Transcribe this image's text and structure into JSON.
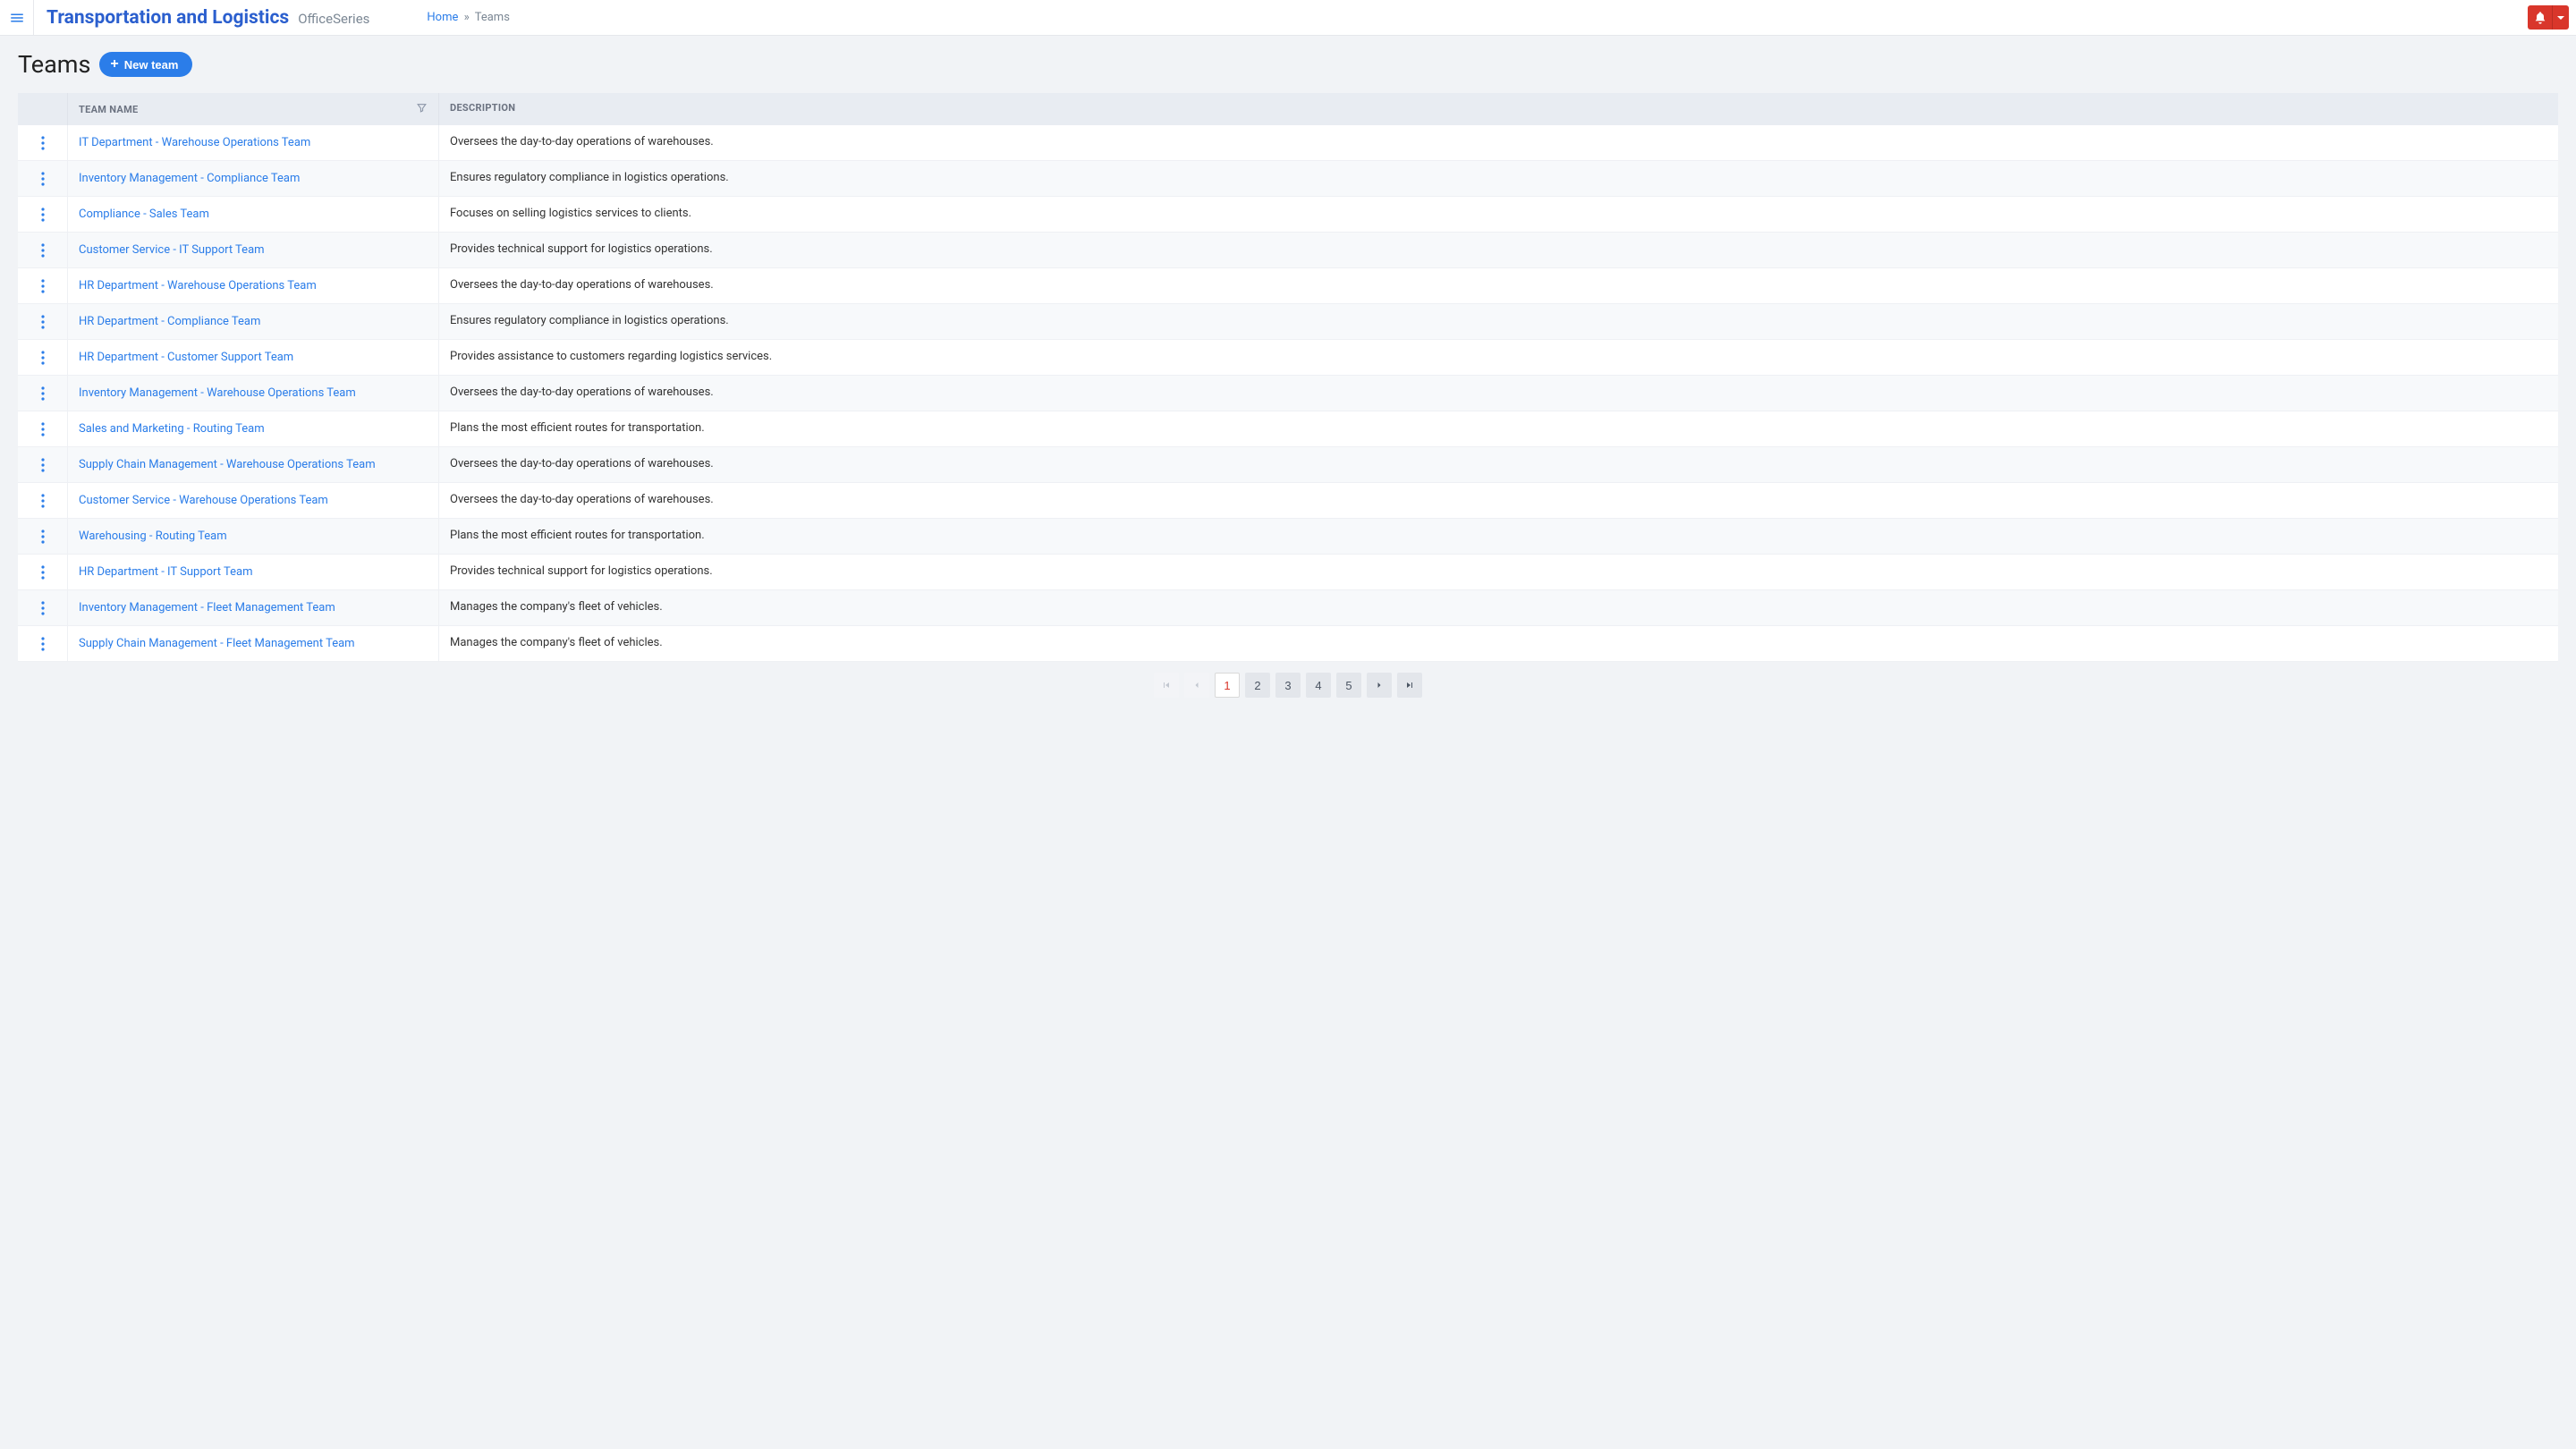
{
  "header": {
    "brand_title": "Transportation and Logistics",
    "brand_sub": "OfficeSeries",
    "breadcrumb": {
      "home": "Home",
      "current": "Teams"
    }
  },
  "page": {
    "title": "Teams",
    "new_button": "New team"
  },
  "table": {
    "columns": {
      "team_name": "TEAM NAME",
      "description": "DESCRIPTION"
    },
    "rows": [
      {
        "name": "IT Department - Warehouse Operations Team",
        "desc": "Oversees the day-to-day operations of warehouses."
      },
      {
        "name": "Inventory Management - Compliance Team",
        "desc": "Ensures regulatory compliance in logistics operations."
      },
      {
        "name": "Compliance - Sales Team",
        "desc": "Focuses on selling logistics services to clients."
      },
      {
        "name": "Customer Service - IT Support Team",
        "desc": "Provides technical support for logistics operations."
      },
      {
        "name": "HR Department - Warehouse Operations Team",
        "desc": "Oversees the day-to-day operations of warehouses."
      },
      {
        "name": "HR Department - Compliance Team",
        "desc": "Ensures regulatory compliance in logistics operations."
      },
      {
        "name": "HR Department - Customer Support Team",
        "desc": "Provides assistance to customers regarding logistics services."
      },
      {
        "name": "Inventory Management - Warehouse Operations Team",
        "desc": "Oversees the day-to-day operations of warehouses."
      },
      {
        "name": "Sales and Marketing - Routing Team",
        "desc": "Plans the most efficient routes for transportation."
      },
      {
        "name": "Supply Chain Management - Warehouse Operations Team",
        "desc": "Oversees the day-to-day operations of warehouses."
      },
      {
        "name": "Customer Service - Warehouse Operations Team",
        "desc": "Oversees the day-to-day operations of warehouses."
      },
      {
        "name": "Warehousing - Routing Team",
        "desc": "Plans the most efficient routes for transportation."
      },
      {
        "name": "HR Department - IT Support Team",
        "desc": "Provides technical support for logistics operations."
      },
      {
        "name": "Inventory Management - Fleet Management Team",
        "desc": "Manages the company's fleet of vehicles."
      },
      {
        "name": "Supply Chain Management - Fleet Management Team",
        "desc": "Manages the company's fleet of vehicles."
      }
    ]
  },
  "pagination": {
    "pages": [
      "1",
      "2",
      "3",
      "4",
      "5"
    ],
    "active": "1"
  },
  "colors": {
    "primary_blue": "#2b7de9",
    "brand_blue": "#2b5fce",
    "danger_red": "#d9362b",
    "bg_page": "#f1f3f6",
    "bg_header_row": "#e8ecf2",
    "bg_row_alt": "#f7f9fb",
    "border": "#eef0f4",
    "text_muted": "#7b8794"
  }
}
